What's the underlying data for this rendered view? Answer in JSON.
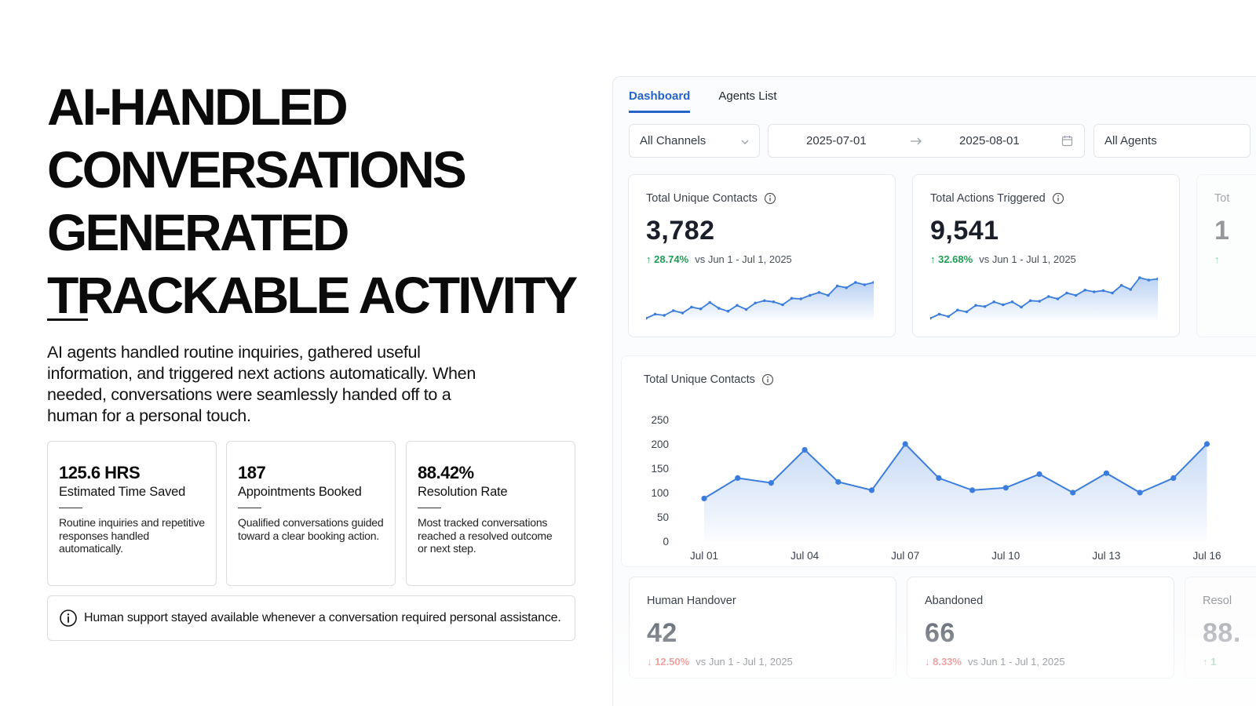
{
  "headline": [
    "AI-HANDLED",
    "CONVERSATIONS",
    "GENERATED",
    "TRACKABLE ACTIVITY"
  ],
  "intro": "AI agents handled routine inquiries, gathered useful information, and triggered next actions automatically. When needed, conversations were seamlessly handed off to a human for a personal touch.",
  "stats": [
    {
      "value": "125.6 HRS",
      "label": "Estimated Time Saved",
      "desc": "Routine inquiries and repetitive responses handled automatically."
    },
    {
      "value": "187",
      "label": "Appointments Booked",
      "desc": "Qualified conversations guided toward a clear booking action."
    },
    {
      "value": "88.42%",
      "label": "Resolution Rate",
      "desc": "Most tracked conversations reached a resolved outcome or next step."
    }
  ],
  "note": {
    "icon": "info-icon",
    "text": "Human support stayed available whenever a conversation required personal assistance."
  },
  "dashboard": {
    "tabs": [
      "Dashboard",
      "Agents List"
    ],
    "active_tab": "Dashboard",
    "filters": {
      "channel": "All Channels",
      "date_from": "2025-07-01",
      "date_to": "2025-08-01",
      "agent": "All Agents"
    },
    "metrics": [
      {
        "title": "Total Unique Contacts",
        "value": "3,782",
        "change": "↑ 28.74%",
        "direction": "up",
        "compare": "vs Jun 1 - Jul 1, 2025"
      },
      {
        "title": "Total Actions Triggered",
        "value": "9,541",
        "change": "↑ 32.68%",
        "direction": "up",
        "compare": "vs Jun 1 - Jul 1, 2025"
      },
      {
        "title": "Tot",
        "value": "1",
        "change": "↑",
        "direction": "up",
        "compare": ""
      }
    ],
    "bottom_metrics": [
      {
        "title": "Human Handover",
        "value": "42",
        "change": "↓ 12.50%",
        "direction": "down",
        "compare": "vs Jun 1 - Jul 1, 2025"
      },
      {
        "title": "Abandoned",
        "value": "66",
        "change": "↓ 8.33%",
        "direction": "down",
        "compare": "vs Jun 1 - Jul 1, 2025"
      },
      {
        "title": "Resol",
        "value": "88.",
        "change": "↑ 1",
        "direction": "up",
        "compare": ""
      }
    ],
    "colors": {
      "accent": "#2563c9",
      "line": "#3b7ddd",
      "up": "#1e9e55",
      "down": "#e05252"
    }
  },
  "sparklines": [
    [
      3,
      10,
      8,
      16,
      12,
      22,
      19,
      30,
      20,
      15,
      25,
      18,
      29,
      33,
      31,
      26,
      37,
      36,
      42,
      47,
      42,
      58,
      55,
      64,
      60,
      64
    ],
    [
      3,
      10,
      6,
      17,
      14,
      25,
      23,
      31,
      26,
      31,
      22,
      33,
      32,
      40,
      36,
      46,
      42,
      51,
      48,
      50,
      46,
      59,
      52,
      72,
      68,
      70
    ]
  ],
  "chart_data": {
    "type": "area",
    "title": "Total Unique Contacts",
    "categories": [
      "Jul 01",
      "Jul 02",
      "Jul 03",
      "Jul 04",
      "Jul 05",
      "Jul 06",
      "Jul 07",
      "Jul 08",
      "Jul 09",
      "Jul 10",
      "Jul 11",
      "Jul 12",
      "Jul 13",
      "Jul 14",
      "Jul 15",
      "Jul 16"
    ],
    "tick_labels": [
      "Jul 01",
      "Jul 04",
      "Jul 07",
      "Jul 10",
      "Jul 13",
      "Jul 16"
    ],
    "series": [
      {
        "values": [
          88,
          130,
          120,
          188,
          122,
          105,
          200,
          130,
          105,
          110,
          138,
          100,
          140,
          100,
          130,
          200
        ]
      }
    ],
    "ylim": [
      0,
      250
    ],
    "yticks": [
      0,
      50,
      100,
      150,
      200,
      250
    ],
    "grid": false
  }
}
